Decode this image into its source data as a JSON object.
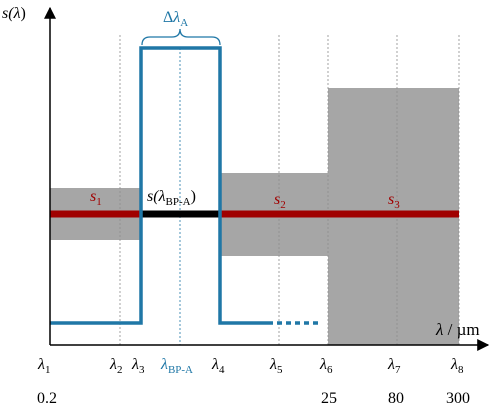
{
  "diagram": {
    "y_axis_label": {
      "main": "s(",
      "lambda": "λ",
      "close": ")"
    },
    "x_axis_label": {
      "lambda": "λ",
      "sep": " / ",
      "unit": "µm"
    },
    "delta_label": {
      "delta": "Δ",
      "lambda": "λ",
      "sub": "A"
    },
    "bp_level_label": {
      "main": "s(",
      "lambda": "λ",
      "sub": "BP-A",
      "close": ")"
    },
    "region_labels": [
      {
        "letter": "s",
        "sub": "1"
      },
      {
        "letter": "s",
        "sub": "2"
      },
      {
        "letter": "s",
        "sub": "3"
      }
    ],
    "tick_labels": [
      {
        "letter": "λ",
        "sub": "1"
      },
      {
        "letter": "λ",
        "sub": "2"
      },
      {
        "letter": "λ",
        "sub": "3"
      },
      {
        "letter": "λ",
        "sub": "BP-A"
      },
      {
        "letter": "λ",
        "sub": "4"
      },
      {
        "letter": "λ",
        "sub": "5"
      },
      {
        "letter": "λ",
        "sub": "6"
      },
      {
        "letter": "λ",
        "sub": "7"
      },
      {
        "letter": "λ",
        "sub": "8"
      }
    ],
    "tick_values": [
      {
        "tick": "λ1",
        "value": "0.2"
      },
      {
        "tick": "λ6",
        "value": "25"
      },
      {
        "tick": "λ7",
        "value": "80"
      },
      {
        "tick": "λ8",
        "value": "300"
      }
    ],
    "colors": {
      "axis": "#000000",
      "passband": "#1f77a6",
      "band_fill": "#a6a6a6",
      "level_line": "#a00000",
      "bp_level": "#000000",
      "guide_line": "#8c8c8c",
      "region_label": "#a00000",
      "delta_label": "#1f77a6",
      "bp_tick_label": "#1f77a6"
    }
  }
}
